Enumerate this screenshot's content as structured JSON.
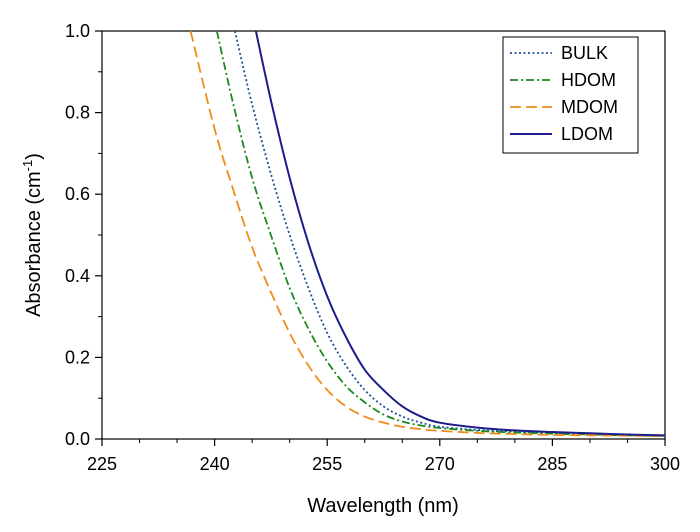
{
  "chart_data": {
    "type": "line",
    "xlabel": "Wavelength (nm)",
    "ylabel": {
      "base": "Absorbance (cm",
      "sup": "-1",
      "end": ")"
    },
    "xlim": [
      225,
      300
    ],
    "ylim": [
      0,
      1.0
    ],
    "xticks": [
      "225",
      "240",
      "255",
      "270",
      "285",
      "300"
    ],
    "yticks": [
      "0.0",
      "0.2",
      "0.4",
      "0.6",
      "0.8",
      "1.0"
    ],
    "grid": false,
    "legend_position": "top-right",
    "series": [
      {
        "name": "BULK",
        "color": "#1f4e9a",
        "style": "dotted",
        "x": [
          242.7,
          245,
          247.5,
          250,
          252.5,
          255,
          257.5,
          260,
          262.5,
          265,
          267.5,
          270,
          275,
          280,
          285,
          290,
          295,
          300
        ],
        "y": [
          1.0,
          0.82,
          0.65,
          0.5,
          0.37,
          0.26,
          0.18,
          0.12,
          0.08,
          0.055,
          0.04,
          0.03,
          0.022,
          0.018,
          0.015,
          0.012,
          0.01,
          0.008
        ]
      },
      {
        "name": "HDOM",
        "color": "#1a8a1a",
        "style": "dashdot",
        "x": [
          240.3,
          242.5,
          245,
          247.5,
          250,
          252.5,
          255,
          257.5,
          260,
          262.5,
          265,
          267.5,
          270,
          275,
          280,
          285,
          290,
          295,
          300
        ],
        "y": [
          1.0,
          0.82,
          0.64,
          0.5,
          0.37,
          0.27,
          0.19,
          0.13,
          0.09,
          0.06,
          0.043,
          0.033,
          0.027,
          0.02,
          0.016,
          0.013,
          0.011,
          0.009,
          0.008
        ]
      },
      {
        "name": "MDOM",
        "color": "#f08c1e",
        "style": "dashed",
        "x": [
          236.8,
          240,
          242.5,
          245,
          247.5,
          250,
          252.5,
          255,
          257.5,
          260,
          262.5,
          265,
          267.5,
          270,
          275,
          280,
          285,
          290,
          295,
          300
        ],
        "y": [
          1.0,
          0.76,
          0.61,
          0.47,
          0.36,
          0.26,
          0.18,
          0.12,
          0.08,
          0.055,
          0.04,
          0.03,
          0.024,
          0.02,
          0.015,
          0.012,
          0.01,
          0.009,
          0.008,
          0.007
        ]
      },
      {
        "name": "LDOM",
        "color": "#1c1c8c",
        "style": "solid",
        "x": [
          245.5,
          247.5,
          250,
          252.5,
          255,
          257.5,
          260,
          262.5,
          265,
          267.5,
          270,
          275,
          280,
          285,
          290,
          295,
          300
        ],
        "y": [
          1.0,
          0.83,
          0.64,
          0.48,
          0.35,
          0.25,
          0.17,
          0.12,
          0.08,
          0.055,
          0.04,
          0.028,
          0.021,
          0.017,
          0.014,
          0.011,
          0.009
        ]
      }
    ]
  }
}
